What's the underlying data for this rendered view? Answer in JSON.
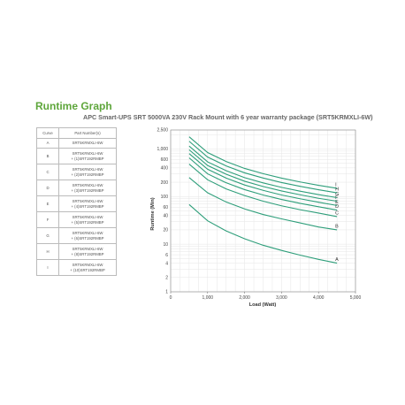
{
  "header": {
    "title": "Runtime Graph",
    "subtitle": "APC Smart-UPS SRT 5000VA 230V Rack Mount with 6 year warranty package (SRT5KRMXLI-6W)"
  },
  "legend_table": {
    "headers": [
      "Curve",
      "Part Number(s)"
    ],
    "rows": [
      {
        "curve": "A",
        "parts": [
          "SRT5KRMXLI-6W"
        ]
      },
      {
        "curve": "B",
        "parts": [
          "SRT5KRMXLI-6W",
          "+ (1)SRT192RMBP"
        ]
      },
      {
        "curve": "C",
        "parts": [
          "SRT5KRMXLI-6W",
          "+ (2)SRT192RMBP"
        ]
      },
      {
        "curve": "D",
        "parts": [
          "SRT5KRMXLI-6W",
          "+ (3)SRT192RMBP"
        ]
      },
      {
        "curve": "E",
        "parts": [
          "SRT5KRMXLI-6W",
          "+ (4)SRT192RMBP"
        ]
      },
      {
        "curve": "F",
        "parts": [
          "SRT5KRMXLI-6W",
          "+ (5)SRT192RMBP"
        ]
      },
      {
        "curve": "G",
        "parts": [
          "SRT5KRMXLI-6W",
          "+ (6)SRT192RMBP"
        ]
      },
      {
        "curve": "H",
        "parts": [
          "SRT5KRMXLI-6W",
          "+ (8)SRT192RMBP"
        ]
      },
      {
        "curve": "I",
        "parts": [
          "SRT5KRMXLI-6W",
          "+ (10)SRT192RMBP"
        ]
      }
    ]
  },
  "chart_data": {
    "type": "line",
    "title": "APC Smart-UPS SRT 5000VA 230V Rack Mount with 6 year warranty package (SRT5KRMXLI-6W)",
    "xlabel": "Load (Watt)",
    "ylabel": "Runtime (Min)",
    "xlim": [
      0,
      5000
    ],
    "ylim": [
      1,
      2500
    ],
    "yscale": "log",
    "grid": true,
    "xticks": [
      0,
      1000,
      2000,
      3000,
      4000,
      5000
    ],
    "xtick_labels": [
      "0",
      "1,000",
      "2,000",
      "3,000",
      "4,000",
      "5,000"
    ],
    "yticks": [
      1,
      2,
      4,
      6,
      10,
      20,
      40,
      60,
      100,
      200,
      400,
      600,
      1000,
      2500
    ],
    "ytick_labels": [
      "1",
      "2",
      "4",
      "6",
      "10",
      "20",
      "40",
      "60",
      "100",
      "200",
      "400",
      "600",
      "1,000",
      "2,500"
    ],
    "line_color": "#2e9e7a",
    "series": [
      {
        "name": "A",
        "x": [
          500,
          1000,
          1500,
          2000,
          2500,
          3000,
          3500,
          4000,
          4500
        ],
        "y": [
          68,
          31,
          19,
          13,
          9.5,
          7.4,
          5.9,
          4.8,
          4.0
        ]
      },
      {
        "name": "B",
        "x": [
          500,
          1000,
          1500,
          2000,
          2500,
          3000,
          3500,
          4000,
          4500
        ],
        "y": [
          250,
          120,
          77,
          55,
          42,
          34,
          28,
          23,
          20
        ]
      },
      {
        "name": "C",
        "x": [
          500,
          1000,
          1500,
          2000,
          2500,
          3000,
          3500,
          4000,
          4500
        ],
        "y": [
          480,
          225,
          145,
          105,
          80,
          64,
          53,
          45,
          38
        ]
      },
      {
        "name": "D",
        "x": [
          500,
          1000,
          1500,
          2000,
          2500,
          3000,
          3500,
          4000,
          4500
        ],
        "y": [
          650,
          300,
          195,
          140,
          108,
          87,
          72,
          61,
          52
        ]
      },
      {
        "name": "E",
        "x": [
          500,
          1000,
          1500,
          2000,
          2500,
          3000,
          3500,
          4000,
          4500
        ],
        "y": [
          800,
          375,
          245,
          175,
          135,
          108,
          90,
          76,
          65
        ]
      },
      {
        "name": "F",
        "x": [
          500,
          1000,
          1500,
          2000,
          2500,
          3000,
          3500,
          4000,
          4500
        ],
        "y": [
          960,
          450,
          295,
          210,
          163,
          131,
          109,
          92,
          80
        ]
      },
      {
        "name": "G",
        "x": [
          500,
          1000,
          1500,
          2000,
          2500,
          3000,
          3500,
          4000,
          4500
        ],
        "y": [
          1150,
          535,
          350,
          250,
          194,
          156,
          130,
          110,
          95
        ]
      },
      {
        "name": "H",
        "x": [
          500,
          1000,
          1500,
          2000,
          2500,
          3000,
          3500,
          4000,
          4500
        ],
        "y": [
          1450,
          675,
          440,
          315,
          245,
          197,
          164,
          139,
          120
        ]
      },
      {
        "name": "I",
        "x": [
          500,
          1000,
          1500,
          2000,
          2500,
          3000,
          3500,
          4000,
          4500
        ],
        "y": [
          1800,
          840,
          545,
          390,
          303,
          244,
          203,
          172,
          149
        ]
      }
    ]
  }
}
